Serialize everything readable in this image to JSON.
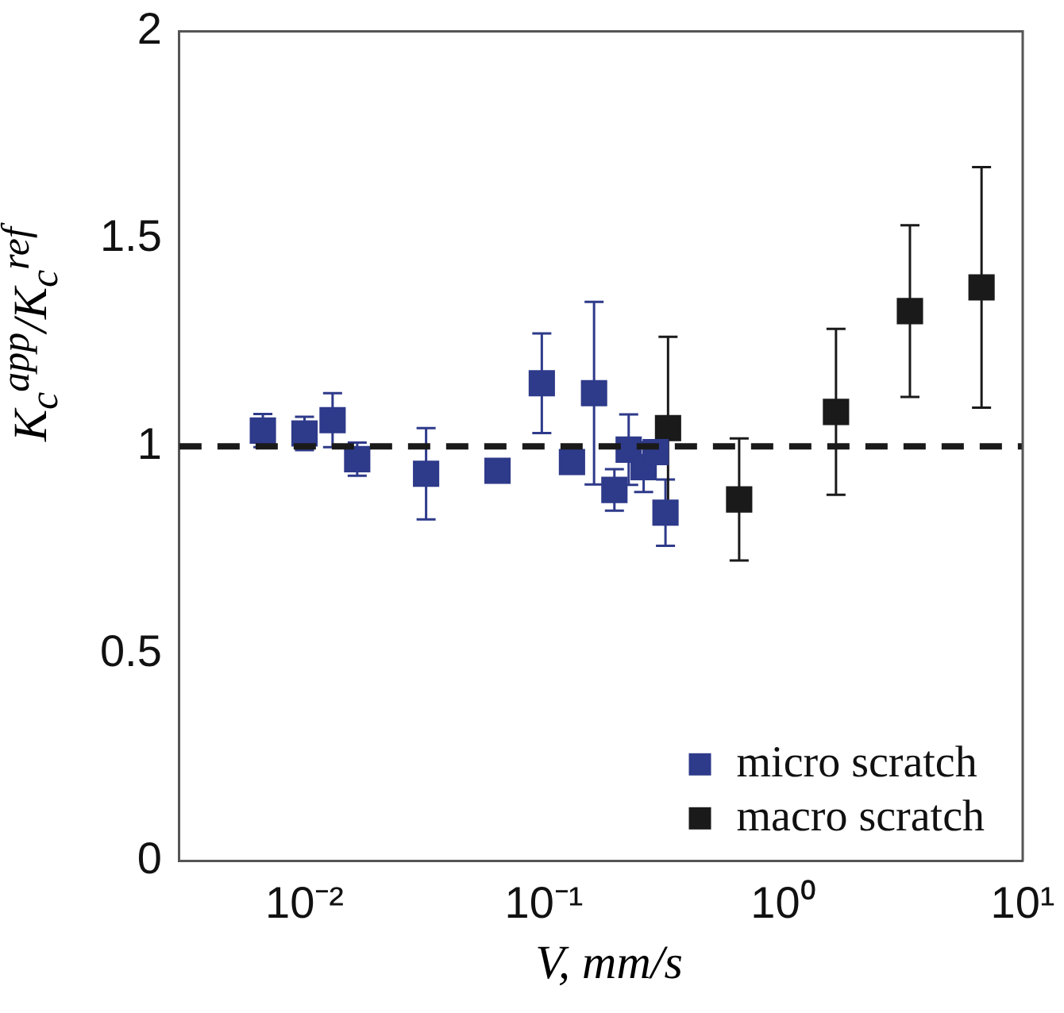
{
  "chart_data": {
    "type": "scatter",
    "xlabel": "V, mm/s",
    "ylabel": "K$_{c}$$^{app}$/K$_{c}$$^{ref}$",
    "log": "x",
    "xlim": [
      0.003,
      10
    ],
    "xticks": [
      {
        "value": 0.01,
        "label": "10⁻²"
      },
      {
        "value": 0.1,
        "label": "10⁻¹"
      },
      {
        "value": 1,
        "label": "10⁰"
      },
      {
        "value": 10,
        "label": "10¹"
      }
    ],
    "ylim": [
      0,
      2
    ],
    "yticks": [
      0,
      0.5,
      1,
      1.5,
      2
    ],
    "grid": false,
    "legend": "bottom right",
    "marker": "square",
    "ref_lines": [
      {
        "axis": "y",
        "value": 1,
        "color": "#1a1a1a",
        "line_style": "dashed"
      }
    ],
    "series": [
      {
        "name": "micro scratch",
        "color": "#2e3a8a",
        "x": [
          0.0067,
          0.01,
          0.0131,
          0.0166,
          0.0322,
          0.064,
          0.098,
          0.131,
          0.162,
          0.197,
          0.226,
          0.261,
          0.293,
          0.322
        ],
        "values": [
          1.038,
          1.031,
          1.063,
          0.969,
          0.934,
          0.941,
          1.152,
          0.962,
          1.128,
          0.895,
          0.992,
          0.95,
          0.986,
          0.84
        ],
        "errors": [
          0.04,
          0.04,
          0.065,
          0.04,
          0.11,
          null,
          0.12,
          null,
          0.22,
          0.05,
          0.085,
          0.06,
          null,
          0.08
        ]
      },
      {
        "name": "macro scratch",
        "color": "#1a1a1a",
        "x": [
          0.33,
          0.654,
          1.66,
          3.38,
          6.73
        ],
        "values": [
          1.044,
          0.872,
          1.083,
          1.326,
          1.383
        ],
        "errors": [
          0.22,
          0.147,
          0.2,
          0.207,
          0.29
        ]
      }
    ]
  }
}
